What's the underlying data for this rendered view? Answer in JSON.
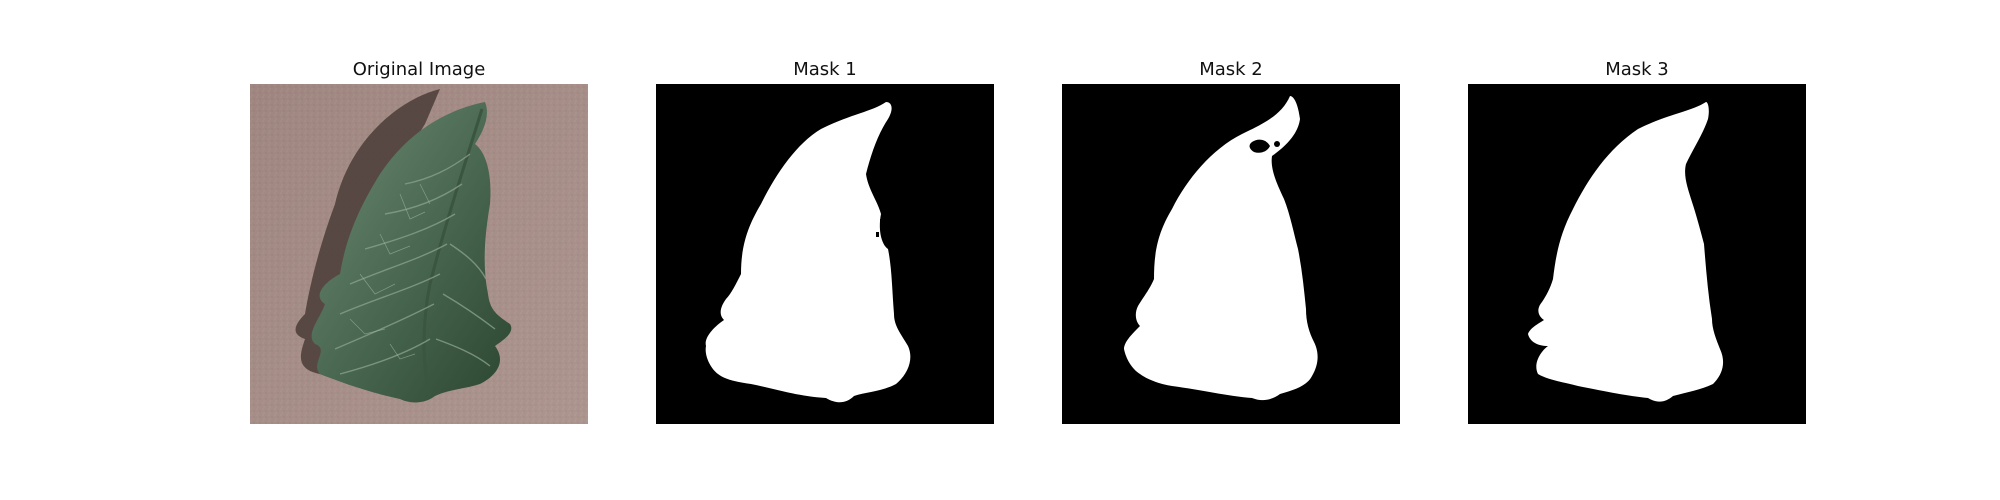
{
  "figure": {
    "panels": [
      {
        "id": "original",
        "title": "Original Image",
        "kind": "photo"
      },
      {
        "id": "mask1",
        "title": "Mask 1",
        "kind": "mask"
      },
      {
        "id": "mask2",
        "title": "Mask 2",
        "kind": "mask"
      },
      {
        "id": "mask3",
        "title": "Mask 3",
        "kind": "mask"
      }
    ]
  },
  "colors": {
    "background_photo": "#a38a84",
    "leaf_dark": "#2e4a33",
    "leaf_mid": "#4f6c57",
    "leaf_light": "#7d957f",
    "shadow": "#4a3c37",
    "mask_bg": "#000000",
    "mask_fg": "#ffffff"
  }
}
